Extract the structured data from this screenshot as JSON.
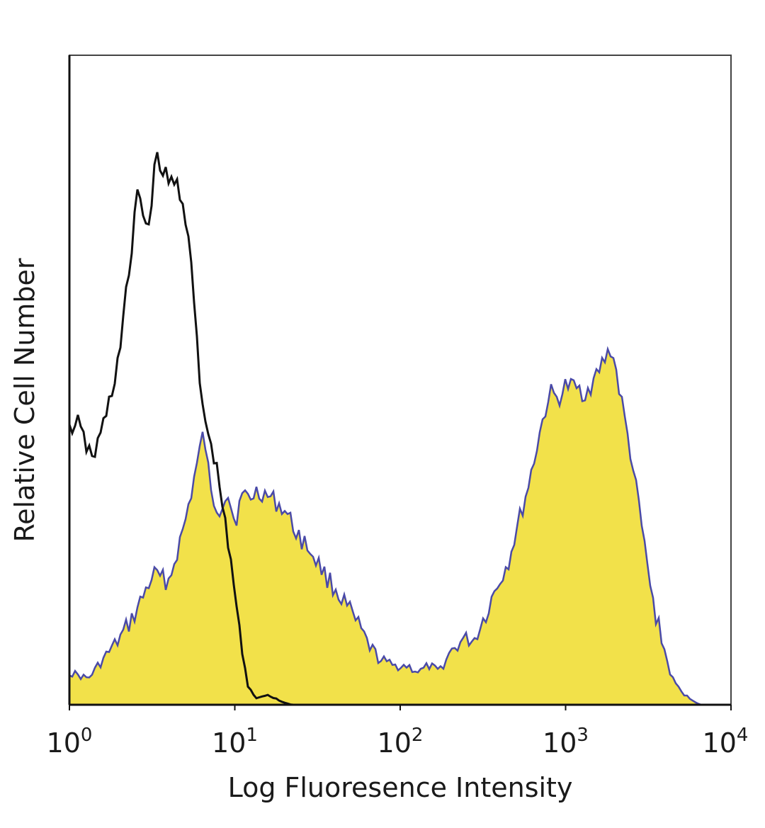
{
  "chart_data": {
    "type": "area",
    "xlabel": "Log Fluoresence Intensity",
    "ylabel": "Relative Cell Number",
    "xscale": "log",
    "xlim": [
      1,
      10000
    ],
    "ylim": [
      0,
      100
    ],
    "x_ticks": [
      {
        "value": 1,
        "base": "10",
        "exp": "0"
      },
      {
        "value": 10,
        "base": "10",
        "exp": "1"
      },
      {
        "value": 100,
        "base": "10",
        "exp": "2"
      },
      {
        "value": 1000,
        "base": "10",
        "exp": "3"
      },
      {
        "value": 10000,
        "base": "10",
        "exp": "4"
      }
    ],
    "grid": false,
    "legend": "none",
    "series": [
      {
        "style": "filled",
        "fill_color": "#f2e14a",
        "line_color": "#4a4aa8",
        "x": [
          1,
          1.3,
          1.6,
          2,
          2.5,
          3.2,
          4,
          5,
          5.8,
          6.5,
          7.2,
          8,
          9,
          10,
          11,
          12.5,
          14,
          16,
          18,
          20,
          23,
          26,
          30,
          35,
          40,
          48,
          56,
          65,
          75,
          90,
          110,
          130,
          150,
          170,
          200,
          240,
          280,
          330,
          380,
          450,
          520,
          600,
          700,
          800,
          900,
          1000,
          1100,
          1300,
          1500,
          1700,
          1900,
          2200,
          2500,
          2900,
          3300,
          3800,
          4400,
          5000,
          5600,
          6500,
          8000,
          10000
        ],
        "y": [
          5,
          4,
          7,
          10,
          14,
          20,
          19,
          28,
          36,
          42,
          32,
          30,
          33,
          28,
          32,
          32,
          33,
          32,
          31,
          30,
          27,
          25,
          23,
          20,
          18,
          15,
          12,
          9,
          7,
          6,
          6,
          5,
          6,
          5,
          8,
          10,
          10,
          14,
          18,
          22,
          28,
          34,
          42,
          48,
          47,
          49,
          49,
          48,
          50,
          53,
          55,
          46,
          38,
          27,
          17,
          10,
          4,
          2,
          1,
          0,
          0,
          0
        ]
      },
      {
        "style": "line",
        "line_color": "#111111",
        "x": [
          1,
          1.1,
          1.25,
          1.4,
          1.6,
          1.8,
          2,
          2.2,
          2.4,
          2.6,
          2.8,
          3,
          3.3,
          3.6,
          4,
          4.4,
          4.8,
          5.2,
          5.7,
          6.2,
          6.8,
          7.5,
          8.2,
          9,
          10,
          11,
          12,
          13.5,
          15,
          17,
          19,
          22,
          26,
          32,
          40,
          60,
          100,
          10000
        ],
        "y": [
          42,
          44,
          40,
          38,
          43,
          48,
          54,
          63,
          70,
          81,
          75,
          73,
          84,
          83,
          80,
          81,
          78,
          73,
          61,
          48,
          42,
          38,
          33,
          25,
          18,
          8,
          3,
          1,
          1.5,
          1.2,
          0.5,
          0,
          0,
          0,
          0,
          0,
          0,
          0
        ]
      }
    ]
  }
}
